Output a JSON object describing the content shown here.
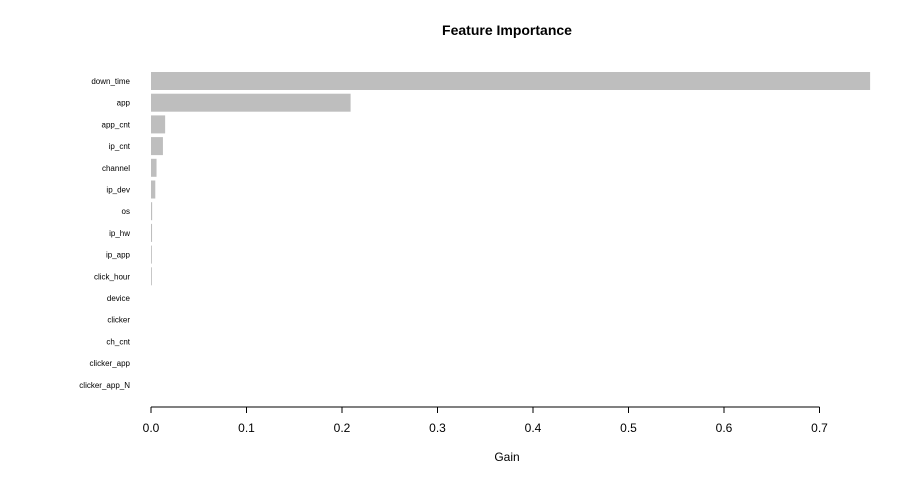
{
  "chart_data": {
    "type": "bar",
    "orientation": "horizontal",
    "title": "Feature Importance",
    "xlabel": "Gain",
    "ylabel": "",
    "xlim": [
      0,
      0.75
    ],
    "x_ticks": [
      "0.0",
      "0.1",
      "0.2",
      "0.3",
      "0.4",
      "0.5",
      "0.6",
      "0.7"
    ],
    "categories": [
      "down_time",
      "app",
      "app_cnt",
      "ip_cnt",
      "channel",
      "ip_dev",
      "os",
      "ip_hw",
      "ip_app",
      "click_hour",
      "device",
      "clicker",
      "ch_cnt",
      "clicker_app",
      "clicker_app_N"
    ],
    "values": [
      0.753,
      0.209,
      0.0148,
      0.0125,
      0.0058,
      0.0045,
      0.0012,
      0.0011,
      0.0009,
      0.0009,
      0.0,
      0.0,
      0.0,
      0.0,
      0.0
    ],
    "bar_color": "#bebebe",
    "grid": false,
    "legend": "none"
  }
}
